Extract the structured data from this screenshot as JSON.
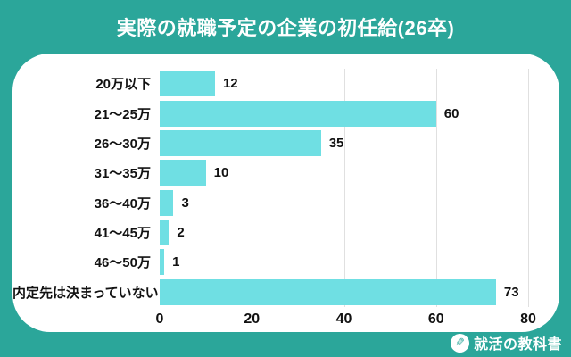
{
  "header": {
    "title": "実際の就職予定の企業の初任給(26卒)"
  },
  "chart_data": {
    "type": "bar",
    "orientation": "horizontal",
    "title": "実際の就職予定の企業の初任給(26卒)",
    "categories": [
      "20万以下",
      "21〜25万",
      "26〜30万",
      "31〜35万",
      "36〜40万",
      "41〜45万",
      "46〜50万",
      "内定先は決まっていない"
    ],
    "values": [
      12,
      60,
      35,
      10,
      3,
      2,
      1,
      73
    ],
    "xlabel": "",
    "ylabel": "",
    "xlim": [
      0,
      80
    ],
    "x_ticks": [
      0,
      20,
      40,
      60,
      80
    ],
    "grid": true,
    "legend": false,
    "value_labels": true
  },
  "footer": {
    "brand_name": "就活の教科書",
    "brand_icon": "pencil-icon",
    "brand_icon_glyph": "✎"
  },
  "colors": {
    "background": "#2BA69A",
    "card": "#FFFFFF",
    "bar": "#6FDFE3",
    "grid": "#E0E0E0",
    "label_text": "#111111",
    "title_text": "#FFFFFF"
  }
}
